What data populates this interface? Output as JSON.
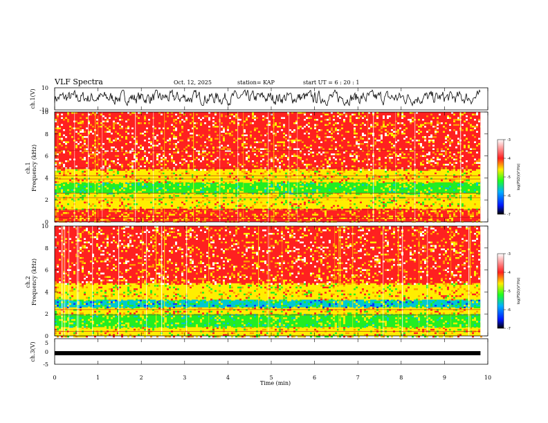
{
  "header": {
    "title": "VLF Spectra",
    "date": "Oct. 12, 2025",
    "station": "station= KAP",
    "start": "start  UT =  6 : 20 : 1"
  },
  "chart_data": [
    {
      "type": "line",
      "name": "ch1-waveform",
      "ylabel": "ch.1(V)",
      "ylim": [
        -10,
        10
      ],
      "y_ticks": [
        "10",
        "-10"
      ],
      "xlim": [
        0,
        10
      ],
      "x_extent_min": 9.83,
      "amplitude_range_v": [
        -6,
        8
      ]
    },
    {
      "type": "heatmap",
      "name": "ch1-spectrogram",
      "ylabel_top": "ch.1",
      "ylabel": "Frequency (kHz)",
      "ylim": [
        0,
        10
      ],
      "y_ticks": [
        "0",
        "2",
        "4",
        "6",
        "8",
        "10"
      ],
      "xlim": [
        0,
        10
      ],
      "x_extent_min": 9.83,
      "bands_khz": [
        {
          "from": 0.0,
          "to": 1.2,
          "level": "red-yellow"
        },
        {
          "from": 1.2,
          "to": 2.0,
          "level": "yellow"
        },
        {
          "from": 2.0,
          "to": 2.6,
          "level": "yellow-green"
        },
        {
          "from": 2.6,
          "to": 3.6,
          "level": "green"
        },
        {
          "from": 3.6,
          "to": 4.8,
          "level": "yellow"
        },
        {
          "from": 4.8,
          "to": 10.0,
          "level": "red"
        }
      ],
      "line_freqs_khz": [
        0.4,
        1.1,
        2.2,
        2.6,
        3.9,
        4.2,
        4.9,
        6.5
      ]
    },
    {
      "type": "heatmap",
      "name": "ch2-spectrogram",
      "ylabel_top": "ch.2",
      "ylabel": "Frequency (kHz)",
      "ylim": [
        0,
        10
      ],
      "y_ticks": [
        "0",
        "2",
        "4",
        "6",
        "8",
        "10"
      ],
      "xlim": [
        0,
        10
      ],
      "x_extent_min": 9.83,
      "bands_khz": [
        {
          "from": 0.0,
          "to": 0.8,
          "level": "yellow"
        },
        {
          "from": 0.8,
          "to": 2.0,
          "level": "green"
        },
        {
          "from": 2.0,
          "to": 2.6,
          "level": "yellow"
        },
        {
          "from": 2.6,
          "to": 3.3,
          "level": "cyan"
        },
        {
          "from": 3.3,
          "to": 4.8,
          "level": "yellow"
        },
        {
          "from": 4.8,
          "to": 10.0,
          "level": "red"
        }
      ],
      "line_freqs_khz": [
        0.4,
        1.9,
        2.4
      ]
    },
    {
      "type": "line",
      "name": "ch3-waveform",
      "ylabel": "ch.3(V)",
      "ylim": [
        -5,
        5
      ],
      "y_ticks": [
        "5",
        "0",
        "-5"
      ],
      "xlim": [
        0,
        10
      ],
      "x_extent_min": 9.83,
      "amplitude_range_v": [
        -1,
        0
      ],
      "xlabel": "Time (min)",
      "x_ticks": [
        "0",
        "1",
        "2",
        "3",
        "4",
        "5",
        "6",
        "7",
        "8",
        "9",
        "10"
      ]
    }
  ],
  "colorbar": {
    "label": "log(PSD)(V²/Hz)",
    "ticks": [
      "-3",
      "-4",
      "-5",
      "-6",
      "-7"
    ],
    "range": [
      -7,
      -3
    ]
  },
  "colors": {
    "red": "#ff2020",
    "orange": "#ff9a00",
    "yellow": "#ffee00",
    "green": "#22ee22",
    "cyan": "#00c8d0",
    "blue": "#1030ff",
    "black": "#000000"
  }
}
